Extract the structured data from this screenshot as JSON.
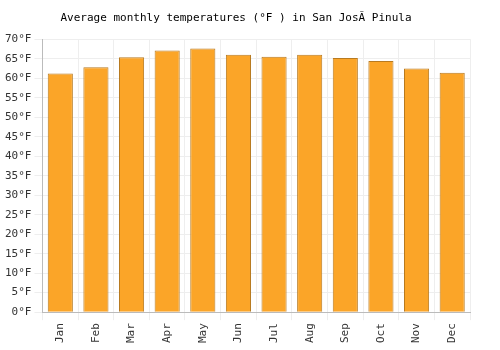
{
  "chart_data": {
    "type": "bar",
    "title": "Average monthly temperatures (°F ) in San JosÃ Pinula",
    "categories": [
      "Jan",
      "Feb",
      "Mar",
      "Apr",
      "May",
      "Jun",
      "Jul",
      "Aug",
      "Sep",
      "Oct",
      "Nov",
      "Dec"
    ],
    "values": [
      61.2,
      62.8,
      65.4,
      67.1,
      67.6,
      66.0,
      65.5,
      66.0,
      65.2,
      64.4,
      62.5,
      61.4
    ],
    "color": "#fba528",
    "ylim": [
      0,
      70
    ],
    "yticks": [
      {
        "value": 0,
        "label": "0°F"
      },
      {
        "value": 5,
        "label": "5°F"
      },
      {
        "value": 10,
        "label": "10°F"
      },
      {
        "value": 15,
        "label": "15°F"
      },
      {
        "value": 20,
        "label": "20°F"
      },
      {
        "value": 25,
        "label": "25°F"
      },
      {
        "value": 30,
        "label": "30°F"
      },
      {
        "value": 35,
        "label": "35°F"
      },
      {
        "value": 40,
        "label": "40°F"
      },
      {
        "value": 45,
        "label": "45°F"
      },
      {
        "value": 50,
        "label": "50°F"
      },
      {
        "value": 55,
        "label": "55°F"
      },
      {
        "value": 60,
        "label": "60°F"
      },
      {
        "value": 65,
        "label": "65°F"
      },
      {
        "value": 70,
        "label": "70°F"
      }
    ],
    "grid": true
  }
}
